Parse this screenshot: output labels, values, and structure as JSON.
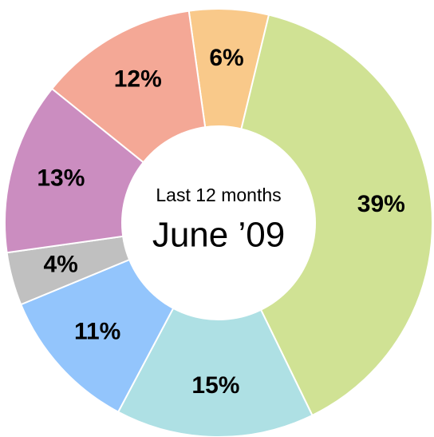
{
  "chart_data": {
    "type": "pie",
    "values": [
      6,
      39,
      15,
      11,
      4,
      13,
      12
    ],
    "value_labels": [
      "6%",
      "39%",
      "15%",
      "11%",
      "4%",
      "13%",
      "12%"
    ],
    "colors": [
      "#f9c98a",
      "#d0e294",
      "#aee0e4",
      "#93c5fc",
      "#c0c0c0",
      "#cb8dc0",
      "#f4a896"
    ],
    "center_label": [
      "Last 12 months",
      "June ’09"
    ]
  }
}
